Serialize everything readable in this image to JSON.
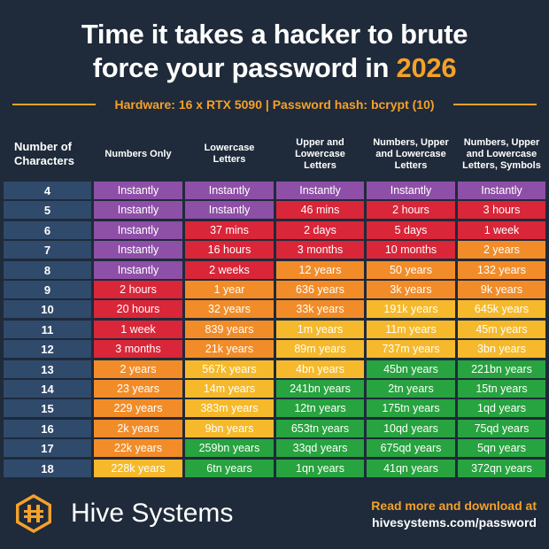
{
  "header": {
    "title_line1": "Time it takes a hacker to brute",
    "title_line2_prefix": "force your password in ",
    "title_year": "2026",
    "subtitle": "Hardware: 16 x RTX 5090 | Password hash: bcrypt (10)"
  },
  "colors": {
    "background": "#1f2a3a",
    "accent": "#f4a12a",
    "row_label": "#2f4a6b",
    "level_instant": "#8e4fa7",
    "level_red": "#d92639",
    "level_orange": "#f28c28",
    "level_yellow": "#f6b92b",
    "level_green": "#27a33f"
  },
  "chart_data": {
    "type": "table",
    "title": "Time it takes a hacker to brute force your password in 2026",
    "subtitle": "Hardware: 16 x RTX 5090 | Password hash: bcrypt (10)",
    "row_header": "Number of Characters",
    "columns": [
      "Numbers Only",
      "Lowercase Letters",
      "Upper and Lowercase Letters",
      "Numbers, Upper and Lowercase Letters",
      "Numbers, Upper and Lowercase Letters, Symbols"
    ],
    "rows": [
      {
        "chars": "4",
        "cells": [
          [
            "Instantly",
            "p"
          ],
          [
            "Instantly",
            "p"
          ],
          [
            "Instantly",
            "p"
          ],
          [
            "Instantly",
            "p"
          ],
          [
            "Instantly",
            "p"
          ]
        ]
      },
      {
        "chars": "5",
        "cells": [
          [
            "Instantly",
            "p"
          ],
          [
            "Instantly",
            "p"
          ],
          [
            "46 mins",
            "r"
          ],
          [
            "2 hours",
            "r"
          ],
          [
            "3 hours",
            "r"
          ]
        ]
      },
      {
        "chars": "6",
        "cells": [
          [
            "Instantly",
            "p"
          ],
          [
            "37 mins",
            "r"
          ],
          [
            "2 days",
            "r"
          ],
          [
            "5 days",
            "r"
          ],
          [
            "1 week",
            "r"
          ]
        ]
      },
      {
        "chars": "7",
        "cells": [
          [
            "Instantly",
            "p"
          ],
          [
            "16 hours",
            "r"
          ],
          [
            "3 months",
            "r"
          ],
          [
            "10 months",
            "r"
          ],
          [
            "2 years",
            "o"
          ]
        ]
      },
      {
        "chars": "8",
        "cells": [
          [
            "Instantly",
            "p"
          ],
          [
            "2 weeks",
            "r"
          ],
          [
            "12 years",
            "o"
          ],
          [
            "50 years",
            "o"
          ],
          [
            "132 years",
            "o"
          ]
        ]
      },
      {
        "chars": "9",
        "cells": [
          [
            "2 hours",
            "r"
          ],
          [
            "1 year",
            "o"
          ],
          [
            "636 years",
            "o"
          ],
          [
            "3k years",
            "o"
          ],
          [
            "9k years",
            "o"
          ]
        ]
      },
      {
        "chars": "10",
        "cells": [
          [
            "20 hours",
            "r"
          ],
          [
            "32 years",
            "o"
          ],
          [
            "33k years",
            "o"
          ],
          [
            "191k years",
            "y"
          ],
          [
            "645k years",
            "y"
          ]
        ]
      },
      {
        "chars": "11",
        "cells": [
          [
            "1 week",
            "r"
          ],
          [
            "839 years",
            "o"
          ],
          [
            "1m years",
            "y"
          ],
          [
            "11m years",
            "y"
          ],
          [
            "45m years",
            "y"
          ]
        ]
      },
      {
        "chars": "12",
        "cells": [
          [
            "3 months",
            "r"
          ],
          [
            "21k years",
            "o"
          ],
          [
            "89m years",
            "y"
          ],
          [
            "737m years",
            "y"
          ],
          [
            "3bn years",
            "y"
          ]
        ]
      },
      {
        "chars": "13",
        "cells": [
          [
            "2 years",
            "o"
          ],
          [
            "567k years",
            "y"
          ],
          [
            "4bn years",
            "y"
          ],
          [
            "45bn years",
            "g"
          ],
          [
            "221bn years",
            "g"
          ]
        ]
      },
      {
        "chars": "14",
        "cells": [
          [
            "23 years",
            "o"
          ],
          [
            "14m years",
            "y"
          ],
          [
            "241bn years",
            "g"
          ],
          [
            "2tn years",
            "g"
          ],
          [
            "15tn years",
            "g"
          ]
        ]
      },
      {
        "chars": "15",
        "cells": [
          [
            "229 years",
            "o"
          ],
          [
            "383m years",
            "y"
          ],
          [
            "12tn years",
            "g"
          ],
          [
            "175tn years",
            "g"
          ],
          [
            "1qd years",
            "g"
          ]
        ]
      },
      {
        "chars": "16",
        "cells": [
          [
            "2k years",
            "o"
          ],
          [
            "9bn years",
            "y"
          ],
          [
            "653tn years",
            "g"
          ],
          [
            "10qd years",
            "g"
          ],
          [
            "75qd years",
            "g"
          ]
        ]
      },
      {
        "chars": "17",
        "cells": [
          [
            "22k years",
            "o"
          ],
          [
            "259bn years",
            "g"
          ],
          [
            "33qd years",
            "g"
          ],
          [
            "675qd years",
            "g"
          ],
          [
            "5qn years",
            "g"
          ]
        ]
      },
      {
        "chars": "18",
        "cells": [
          [
            "228k years",
            "y"
          ],
          [
            "6tn years",
            "g"
          ],
          [
            "1qn years",
            "g"
          ],
          [
            "41qn years",
            "g"
          ],
          [
            "372qn years",
            "g"
          ]
        ]
      }
    ]
  },
  "footer": {
    "brand": "Hive Systems",
    "logo_icon": "hive-logo-icon",
    "cta_line1": "Read more and download at",
    "cta_line2": "hivesystems.com/password"
  }
}
